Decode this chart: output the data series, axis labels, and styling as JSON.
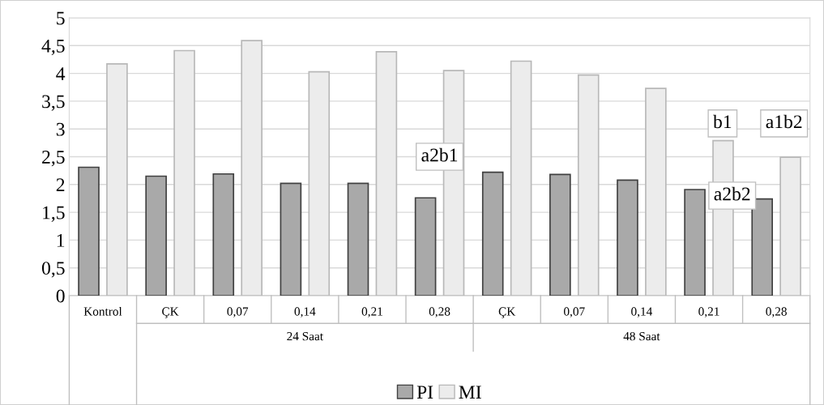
{
  "chart_data": {
    "type": "bar",
    "categories": [
      "Kontrol",
      "ÇK",
      "0,07",
      "0,14",
      "0,21",
      "0,28",
      "ÇK",
      "0,07",
      "0,14",
      "0,21",
      "0,28"
    ],
    "series": [
      {
        "name": "PI",
        "color": "#a9a9a9",
        "values": [
          2.31,
          2.15,
          2.19,
          2.02,
          2.02,
          1.76,
          2.22,
          2.18,
          2.08,
          1.91,
          1.74
        ]
      },
      {
        "name": "MI",
        "color": "#ececec",
        "values": [
          4.17,
          4.41,
          4.59,
          4.03,
          4.39,
          4.05,
          4.22,
          3.97,
          3.73,
          2.79,
          2.49
        ]
      }
    ],
    "annotations": [
      "a2b1",
      "b1",
      "a1b2",
      "a2b2",
      "24 Saat",
      "48 Saat"
    ],
    "ylim": [
      0,
      5
    ],
    "yticks": [
      0,
      {
        "value": 0.5,
        "label": "0,5"
      },
      1,
      {
        "value": 1.5,
        "label": "1,5"
      },
      2,
      {
        "value": 2.5,
        "label": "2,5"
      },
      3,
      {
        "value": 3.5,
        "label": "3,5"
      },
      4,
      {
        "value": 4.5,
        "label": "4,5"
      },
      5
    ],
    "grid": "y",
    "legend": "bottom"
  }
}
